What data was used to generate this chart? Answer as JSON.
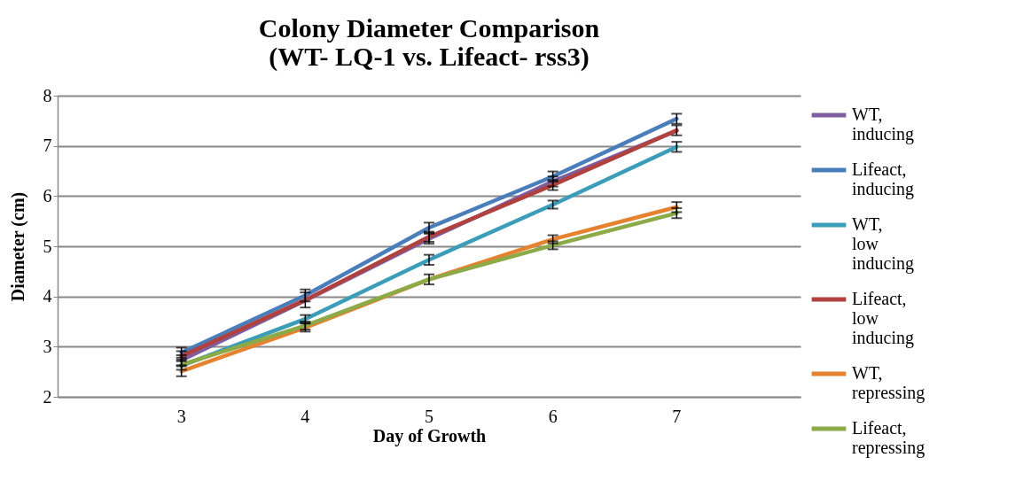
{
  "chart_data": {
    "type": "line",
    "title": "Colony Diameter Comparison\n(WT- LQ-1 vs. Lifeact- rss3)",
    "xlabel": "Day of Growth",
    "ylabel": "Diameter (cm)",
    "categories": [
      "3",
      "4",
      "5",
      "6",
      "7"
    ],
    "ylim": [
      2,
      8
    ],
    "yticks": [
      2,
      3,
      4,
      5,
      6,
      7,
      8
    ],
    "grid": "y",
    "legend": "right",
    "marker": "none",
    "line_style": "solid",
    "series": [
      {
        "name": "WT, inducing",
        "color": "#7d5fa0",
        "values": [
          2.73,
          3.92,
          5.15,
          6.29,
          7.3
        ],
        "errors": [
          0.1,
          null,
          0.1,
          0.1,
          null
        ]
      },
      {
        "name": "Lifeact, inducing",
        "color": "#4a7ebb",
        "values": [
          2.88,
          4.02,
          5.37,
          6.39,
          7.54
        ],
        "errors": [
          0.1,
          0.12,
          0.1,
          0.1,
          0.1
        ]
      },
      {
        "name": "WT, low inducing",
        "color": "#3c9db8",
        "values": [
          2.62,
          3.55,
          4.73,
          5.83,
          6.98
        ],
        "errors": [
          null,
          0.08,
          0.1,
          0.08,
          0.1
        ]
      },
      {
        "name": "Lifeact, low inducing",
        "color": "#b0413e",
        "values": [
          2.81,
          3.93,
          5.19,
          6.22,
          7.31
        ],
        "errors": [
          0.1,
          0.15,
          0.1,
          0.1,
          0.1
        ]
      },
      {
        "name": "WT, repressing",
        "color": "#e58230",
        "values": [
          2.51,
          3.38,
          4.34,
          5.14,
          5.78
        ],
        "errors": [
          0.1,
          0.08,
          null,
          0.08,
          0.1
        ]
      },
      {
        "name": "Lifeact, repressing",
        "color": "#8caa48",
        "values": [
          2.64,
          3.42,
          4.34,
          5.02,
          5.66
        ],
        "errors": [
          0.1,
          0.08,
          0.1,
          0.08,
          0.1
        ]
      }
    ]
  }
}
